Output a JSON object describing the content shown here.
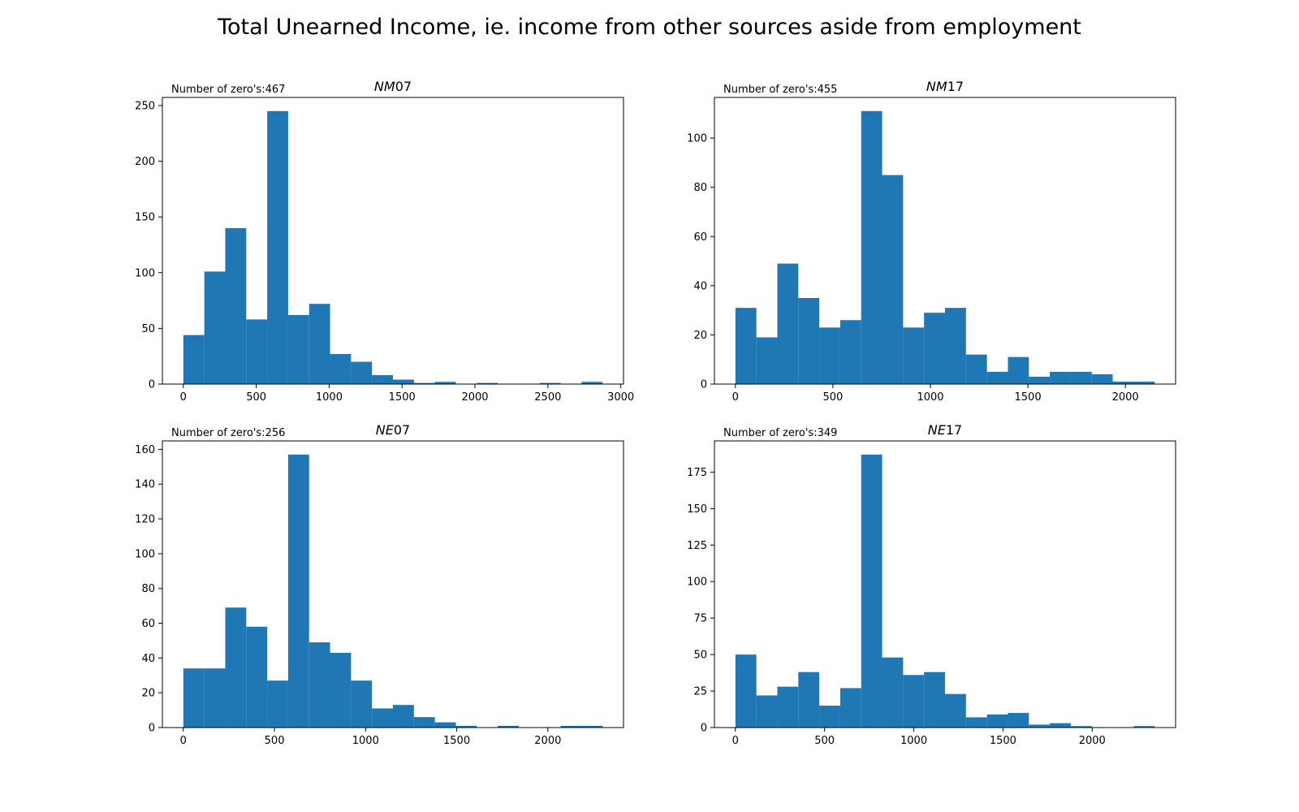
{
  "figure": {
    "suptitle": "Total Unearned Income, ie. income from other sources aside from employment",
    "bar_color": "#1f77b4"
  },
  "chart_data": [
    {
      "type": "bar",
      "title_italic": "NM",
      "title_rest": "07",
      "annotation": "Number of zero's:467",
      "bin_edges": [
        0,
        143.75,
        287.5,
        431.25,
        575,
        718.75,
        862.5,
        1006.25,
        1150,
        1293.75,
        1437.5,
        1581.25,
        1725,
        1868.75,
        2012.5,
        2156.25,
        2300,
        2443.75,
        2587.5,
        2731.25,
        2875
      ],
      "values": [
        44,
        101,
        140,
        58,
        245,
        62,
        72,
        27,
        20,
        8,
        4,
        1,
        2,
        0,
        1,
        0,
        0,
        1,
        0,
        2
      ],
      "xlim": [
        -143.75,
        3018.75
      ],
      "ylim": [
        0,
        257.25
      ],
      "xticks": [
        0,
        500,
        1000,
        1500,
        2000,
        2500,
        3000
      ],
      "yticks": [
        0,
        50,
        100,
        150,
        200,
        250
      ]
    },
    {
      "type": "bar",
      "title_italic": "NM",
      "title_rest": "17",
      "annotation": "Number of zero's:455",
      "bin_edges": [
        0,
        107.5,
        215,
        322.5,
        430,
        537.5,
        645,
        752.5,
        860,
        967.5,
        1075,
        1182.5,
        1290,
        1397.5,
        1505,
        1612.5,
        1720,
        1827.5,
        1935,
        2042.5,
        2150
      ],
      "values": [
        31,
        19,
        49,
        35,
        23,
        26,
        111,
        85,
        23,
        29,
        31,
        12,
        5,
        11,
        3,
        5,
        5,
        4,
        1,
        1
      ],
      "xlim": [
        -107.5,
        2257.5
      ],
      "ylim": [
        0,
        116.55
      ],
      "xticks": [
        0,
        500,
        1000,
        1500,
        2000
      ],
      "yticks": [
        0,
        20,
        40,
        60,
        80,
        100
      ]
    },
    {
      "type": "bar",
      "title_italic": "NE",
      "title_rest": "07",
      "annotation": "Number of zero's:256",
      "bin_edges": [
        0,
        115,
        230,
        345,
        460,
        575,
        690,
        805,
        920,
        1035,
        1150,
        1265,
        1380,
        1495,
        1610,
        1725,
        1840,
        1955,
        2070,
        2185,
        2300
      ],
      "values": [
        34,
        34,
        69,
        58,
        27,
        157,
        49,
        43,
        27,
        11,
        13,
        6,
        3,
        1,
        0,
        1,
        0,
        0,
        1,
        1
      ],
      "xlim": [
        -115,
        2415
      ],
      "ylim": [
        0,
        164.85
      ],
      "xticks": [
        0,
        500,
        1000,
        1500,
        2000
      ],
      "yticks": [
        0,
        20,
        40,
        60,
        80,
        100,
        120,
        140,
        160
      ]
    },
    {
      "type": "bar",
      "title_italic": "NE",
      "title_rest": "17",
      "annotation": "Number of zero's:349",
      "bin_edges": [
        0,
        117.5,
        235,
        352.5,
        470,
        587.5,
        705,
        822.5,
        940,
        1057.5,
        1175,
        1292.5,
        1410,
        1527.5,
        1645,
        1762.5,
        1880,
        1997.5,
        2115,
        2232.5,
        2350
      ],
      "values": [
        50,
        22,
        28,
        38,
        15,
        27,
        187,
        48,
        36,
        38,
        23,
        7,
        9,
        10,
        2,
        3,
        1,
        0,
        0,
        1
      ],
      "xlim": [
        -117.5,
        2467.5
      ],
      "ylim": [
        0,
        196.35
      ],
      "xticks": [
        0,
        500,
        1000,
        1500,
        2000
      ],
      "yticks": [
        0,
        25,
        50,
        75,
        100,
        125,
        150,
        175
      ]
    }
  ]
}
